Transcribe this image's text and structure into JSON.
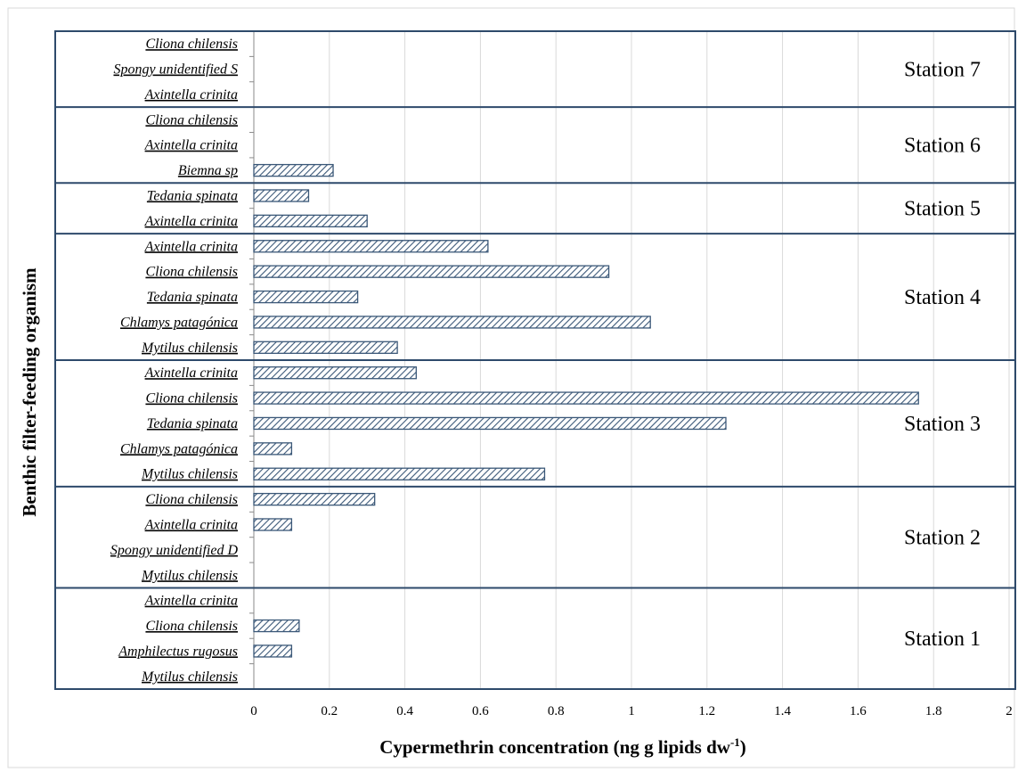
{
  "chart_data": {
    "type": "bar",
    "orientation": "horizontal",
    "xlabel": "Cypermethrin concentration (ng g lipids dw",
    "xlabel_sup": "-1",
    "xlabel_end": ")",
    "ylabel": "Benthic filter-feeding organism",
    "xlim": [
      0,
      2
    ],
    "xticks": [
      "0",
      "0.2",
      "0.4",
      "0.6",
      "0.8",
      "1",
      "1.2",
      "1.4",
      "1.6",
      "1.8",
      "2"
    ],
    "grid": "vertical",
    "bar_fill": "hatched",
    "colors": {
      "bar_stroke": "#3b5878",
      "bar_hatch": "#3b5878",
      "frame": "#2e4a6b",
      "grid": "#d9d9d9"
    },
    "groups": [
      {
        "station": "Station 7",
        "items": [
          {
            "label": "Cliona chilensis",
            "value": 0
          },
          {
            "label": "Spongy unidentified S",
            "value": 0
          },
          {
            "label": "Axintella crinita",
            "value": 0
          }
        ]
      },
      {
        "station": "Station 6",
        "items": [
          {
            "label": "Cliona chilensis",
            "value": 0
          },
          {
            "label": "Axintella crinita",
            "value": 0
          },
          {
            "label": "Biemna sp",
            "value": 0.21
          }
        ]
      },
      {
        "station": "Station 5",
        "items": [
          {
            "label": "Tedania spinata",
            "value": 0.145
          },
          {
            "label": "Axintella crinita",
            "value": 0.3
          }
        ]
      },
      {
        "station": "Station 4",
        "items": [
          {
            "label": "Axintella crinita",
            "value": 0.62
          },
          {
            "label": "Cliona chilensis",
            "value": 0.94
          },
          {
            "label": "Tedania spinata",
            "value": 0.275
          },
          {
            "label": "Chlamys patagónica",
            "value": 1.05
          },
          {
            "label": "Mytilus chilensis",
            "value": 0.38
          }
        ]
      },
      {
        "station": "Station 3",
        "items": [
          {
            "label": "Axintella crinita",
            "value": 0.43
          },
          {
            "label": "Cliona chilensis",
            "value": 1.76
          },
          {
            "label": "Tedania spinata",
            "value": 1.25
          },
          {
            "label": "Chlamys patagónica",
            "value": 0.1
          },
          {
            "label": "Mytilus chilensis",
            "value": 0.77
          }
        ]
      },
      {
        "station": "Station 2",
        "items": [
          {
            "label": "Cliona chilensis",
            "value": 0.32
          },
          {
            "label": "Axintella crinita",
            "value": 0.1
          },
          {
            "label": "Spongy unidentified D",
            "value": 0
          },
          {
            "label": "Mytilus chilensis",
            "value": 0
          }
        ]
      },
      {
        "station": "Station 1",
        "items": [
          {
            "label": "Axintella crinita",
            "value": 0
          },
          {
            "label": "Cliona chilensis",
            "value": 0.12
          },
          {
            "label": "Amphilectus rugosus",
            "value": 0.1
          },
          {
            "label": "Mytilus chilensis",
            "value": 0
          }
        ]
      }
    ]
  }
}
